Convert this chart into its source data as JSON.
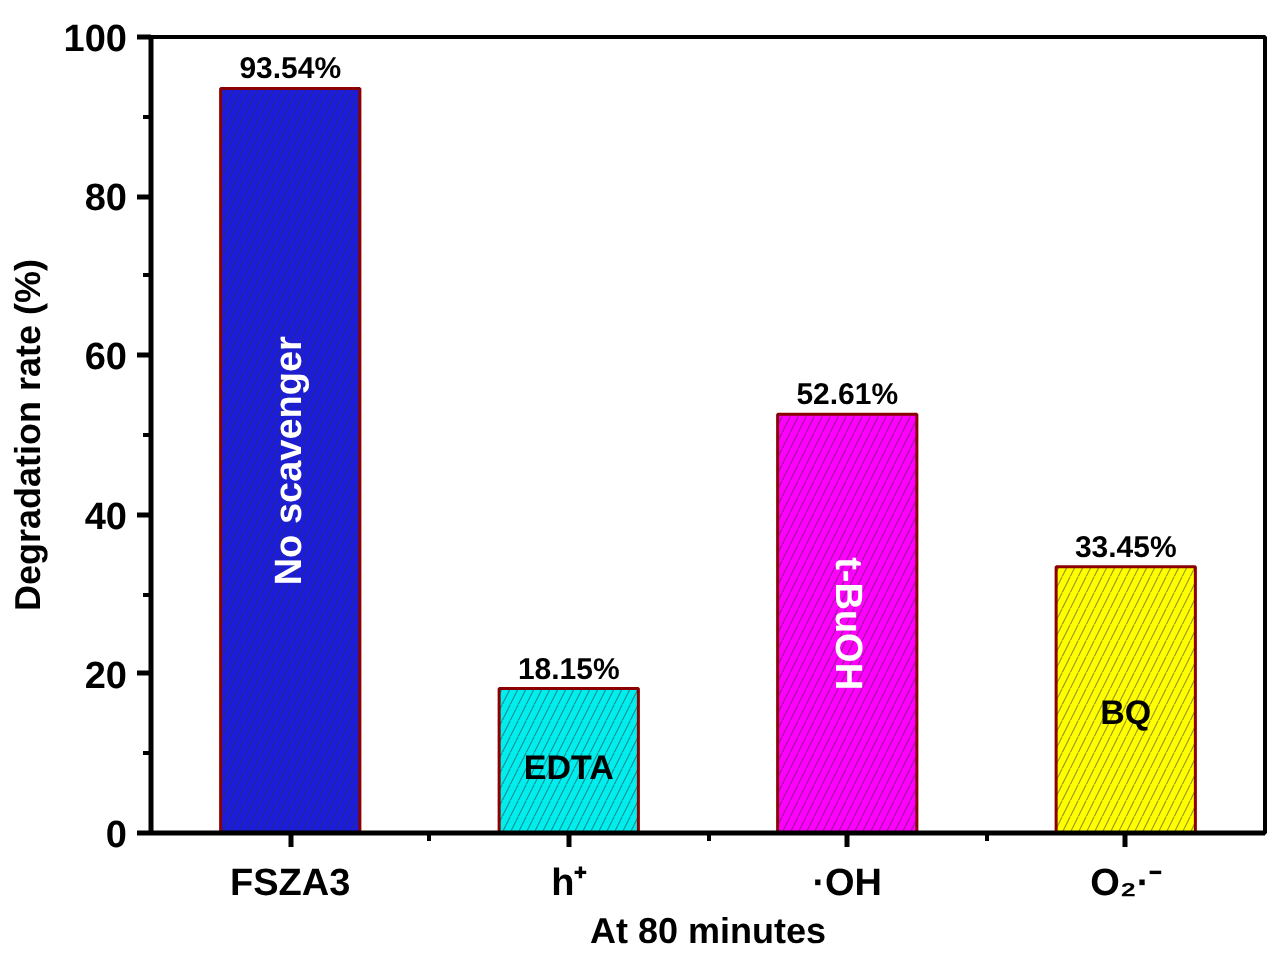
{
  "chart_data": {
    "type": "bar",
    "xlabel": "At 80 minutes",
    "ylabel": "Degradation rate (%)",
    "categories": [
      "FSZA3",
      "h⁺",
      "·OH",
      "O₂·⁻"
    ],
    "values": [
      93.54,
      18.15,
      52.61,
      33.45
    ],
    "colors": [
      "#1c1cdc",
      "#00eeee",
      "#ff00ff",
      "#ffff00"
    ],
    "value_labels": [
      "93.54%",
      "18.15%",
      "52.61%",
      "33.45%"
    ],
    "annotations": [
      "No scavenger",
      "EDTA",
      "t-BuOH",
      "BQ"
    ],
    "ylim": [
      0,
      100
    ],
    "yticks": [
      0,
      20,
      40,
      60,
      80,
      100
    ],
    "grid": false
  }
}
